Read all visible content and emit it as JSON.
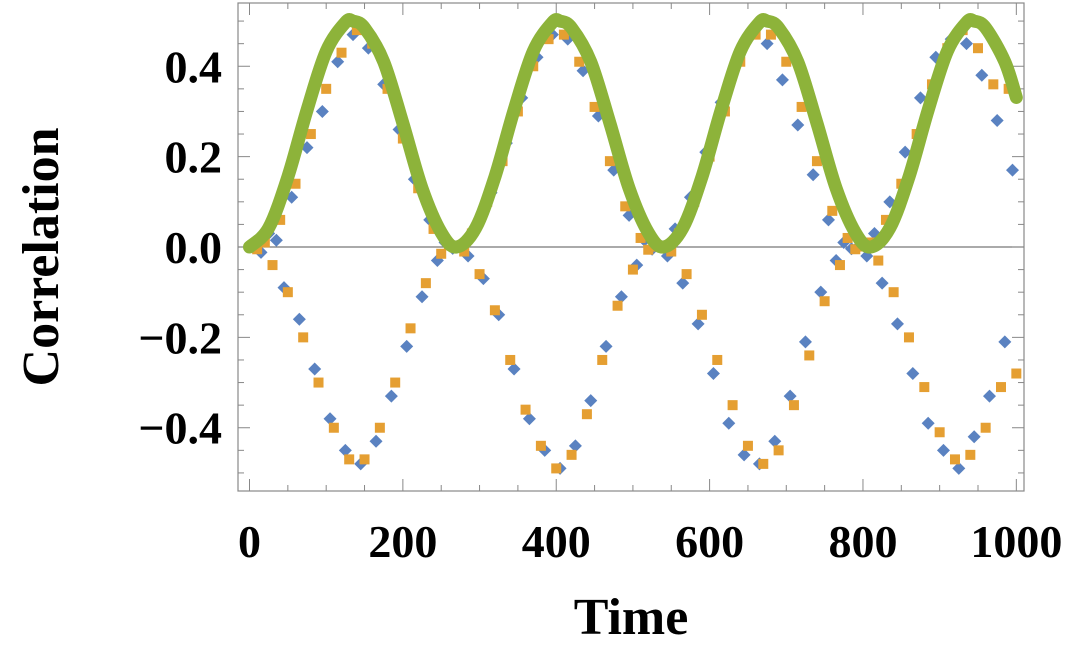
{
  "chart_data": {
    "type": "scatter",
    "title": "",
    "xlabel": "Time",
    "ylabel": "Correlation",
    "xlim": [
      -15,
      1010
    ],
    "ylim": [
      -0.54,
      0.54
    ],
    "x_ticks": [
      0,
      200,
      400,
      600,
      800,
      1000
    ],
    "x_tick_labels": [
      "0",
      "200",
      "400",
      "600",
      "800",
      "1000"
    ],
    "y_ticks": [
      -0.4,
      -0.2,
      0.0,
      0.2,
      0.4
    ],
    "y_tick_labels": [
      "−0.4",
      "−0.2",
      "0.0",
      "0.2",
      "0.4"
    ],
    "grid": false,
    "legend": "none",
    "series": [
      {
        "kind": "line",
        "color": "#8db33a",
        "description": "envelope 0.5*sin^2(pi*t/270)",
        "x": [
          0,
          25,
          50,
          75,
          100,
          125,
          135,
          150,
          175,
          200,
          225,
          250,
          270,
          295,
          320,
          345,
          370,
          395,
          405,
          420,
          445,
          470,
          495,
          520,
          540,
          565,
          590,
          615,
          640,
          665,
          675,
          690,
          715,
          740,
          765,
          790,
          810,
          835,
          860,
          885,
          910,
          935,
          945,
          960,
          985,
          1000
        ],
        "y": [
          0.0,
          0.042,
          0.155,
          0.303,
          0.433,
          0.497,
          0.5,
          0.485,
          0.41,
          0.274,
          0.13,
          0.032,
          0.0,
          0.042,
          0.155,
          0.303,
          0.433,
          0.497,
          0.5,
          0.485,
          0.41,
          0.274,
          0.13,
          0.032,
          0.0,
          0.042,
          0.155,
          0.303,
          0.433,
          0.497,
          0.5,
          0.485,
          0.41,
          0.274,
          0.13,
          0.032,
          0.0,
          0.042,
          0.155,
          0.303,
          0.433,
          0.497,
          0.5,
          0.485,
          0.41,
          0.331
        ]
      },
      {
        "kind": "scatter",
        "marker": "diamond",
        "color": "#5a82c1",
        "x": [
          5,
          15,
          25,
          35,
          45,
          55,
          65,
          75,
          85,
          95,
          105,
          115,
          125,
          135,
          145,
          155,
          165,
          175,
          185,
          195,
          205,
          215,
          225,
          235,
          245,
          255,
          265,
          275,
          285,
          295,
          305,
          315,
          325,
          335,
          345,
          355,
          365,
          375,
          385,
          395,
          405,
          415,
          425,
          435,
          445,
          455,
          465,
          475,
          485,
          495,
          505,
          515,
          525,
          535,
          545,
          555,
          565,
          575,
          585,
          595,
          605,
          615,
          625,
          635,
          645,
          655,
          665,
          675,
          685,
          695,
          705,
          715,
          725,
          735,
          745,
          755,
          765,
          775,
          785,
          795,
          805,
          815,
          825,
          835,
          845,
          855,
          865,
          875,
          885,
          895,
          905,
          915,
          925,
          935,
          945,
          955,
          965,
          975,
          985,
          995
        ],
        "y": [
          0.001,
          -0.012,
          0.03,
          0.015,
          -0.09,
          0.11,
          -0.16,
          0.22,
          -0.27,
          0.3,
          -0.38,
          0.41,
          -0.45,
          0.47,
          -0.48,
          0.44,
          -0.43,
          0.36,
          -0.33,
          0.26,
          -0.22,
          0.15,
          -0.11,
          0.06,
          -0.03,
          0.01,
          -0.003,
          0.004,
          -0.02,
          0.04,
          -0.07,
          0.12,
          -0.15,
          0.23,
          -0.27,
          0.33,
          -0.38,
          0.42,
          -0.45,
          0.47,
          -0.49,
          0.46,
          -0.44,
          0.39,
          -0.34,
          0.29,
          -0.22,
          0.17,
          -0.11,
          0.07,
          -0.04,
          0.015,
          -0.005,
          0.002,
          -0.02,
          0.04,
          -0.08,
          0.11,
          -0.17,
          0.21,
          -0.28,
          0.32,
          -0.39,
          0.41,
          -0.46,
          0.47,
          -0.48,
          0.45,
          -0.43,
          0.37,
          -0.33,
          0.27,
          -0.21,
          0.16,
          -0.1,
          0.06,
          -0.03,
          0.01,
          -0.004,
          0.003,
          -0.02,
          0.03,
          -0.08,
          0.1,
          -0.17,
          0.21,
          -0.28,
          0.33,
          -0.39,
          0.42,
          -0.45,
          0.46,
          -0.49,
          0.45,
          -0.42,
          0.38,
          -0.33,
          0.28,
          -0.21,
          0.17
        ]
      },
      {
        "kind": "scatter",
        "marker": "square",
        "color": "#e59f32",
        "x": [
          10,
          20,
          30,
          40,
          50,
          60,
          70,
          80,
          90,
          100,
          110,
          120,
          130,
          140,
          150,
          160,
          170,
          180,
          190,
          200,
          210,
          220,
          230,
          240,
          250,
          260,
          270,
          280,
          290,
          300,
          310,
          320,
          330,
          340,
          350,
          360,
          370,
          380,
          390,
          400,
          410,
          420,
          430,
          440,
          450,
          460,
          470,
          480,
          490,
          500,
          510,
          520,
          530,
          540,
          550,
          560,
          570,
          580,
          590,
          600,
          610,
          620,
          630,
          640,
          650,
          660,
          670,
          680,
          690,
          700,
          710,
          720,
          730,
          740,
          750,
          760,
          770,
          780,
          790,
          800,
          810,
          820,
          830,
          840,
          850,
          860,
          870,
          880,
          890,
          900,
          910,
          920,
          930,
          940,
          950,
          960,
          970,
          980,
          990,
          1000
        ],
        "y": [
          -0.005,
          0.01,
          -0.04,
          0.06,
          -0.1,
          0.14,
          -0.2,
          0.25,
          -0.3,
          0.35,
          -0.4,
          0.43,
          -0.47,
          0.48,
          -0.47,
          0.45,
          -0.4,
          0.35,
          -0.3,
          0.24,
          -0.18,
          0.13,
          -0.08,
          0.04,
          -0.015,
          0.004,
          0.0,
          -0.01,
          0.03,
          -0.06,
          0.1,
          -0.14,
          0.19,
          -0.25,
          0.3,
          -0.36,
          0.4,
          -0.44,
          0.46,
          -0.49,
          0.47,
          -0.46,
          0.41,
          -0.37,
          0.31,
          -0.25,
          0.19,
          -0.13,
          0.09,
          -0.05,
          0.02,
          -0.006,
          0.001,
          0.002,
          -0.01,
          0.03,
          -0.06,
          0.1,
          -0.15,
          0.2,
          -0.25,
          0.3,
          -0.35,
          0.41,
          -0.44,
          0.47,
          -0.48,
          0.47,
          -0.45,
          0.41,
          -0.35,
          0.31,
          -0.24,
          0.19,
          -0.12,
          0.08,
          -0.04,
          0.02,
          -0.005,
          0.001,
          0.01,
          -0.03,
          0.06,
          -0.1,
          0.14,
          -0.2,
          0.25,
          -0.31,
          0.36,
          -0.41,
          0.44,
          -0.47,
          0.48,
          -0.46,
          0.44,
          -0.4,
          0.36,
          -0.31,
          0.35,
          -0.28
        ]
      }
    ]
  }
}
